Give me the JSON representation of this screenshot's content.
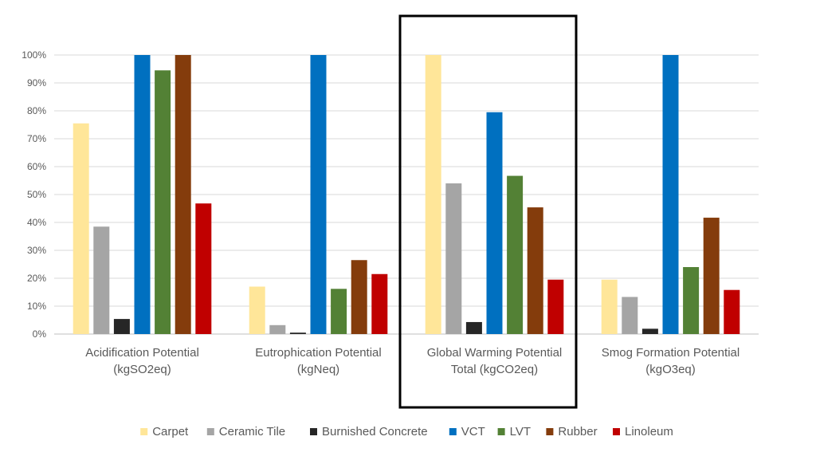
{
  "chart_data": {
    "type": "bar",
    "categories": [
      [
        "Acidification Potential",
        "(kgSO2eq)"
      ],
      [
        "Eutrophication Potential",
        "(kgNeq)"
      ],
      [
        "Global Warming Potential",
        "Total (kgCO2eq)"
      ],
      [
        "Smog Formation Potential",
        "(kgO3eq)"
      ]
    ],
    "y_ticks": [
      "0%",
      "10%",
      "20%",
      "30%",
      "40%",
      "50%",
      "60%",
      "70%",
      "80%",
      "90%",
      "100%"
    ],
    "ylim": [
      0,
      100
    ],
    "grid": true,
    "legend_position": "bottom",
    "highlighted_category": 2,
    "series": [
      {
        "name": "Carpet",
        "color": "#FFE699",
        "values": [
          75.5,
          17,
          100,
          19.5
        ]
      },
      {
        "name": "Ceramic Tile",
        "color": "#A5A5A5",
        "values": [
          38.5,
          3.2,
          54,
          13.3
        ]
      },
      {
        "name": "Burnished Concrete",
        "color": "#262626",
        "values": [
          5.4,
          0.5,
          4.3,
          1.9
        ]
      },
      {
        "name": "VCT",
        "color": "#0070C0",
        "values": [
          100,
          100,
          79.5,
          100
        ]
      },
      {
        "name": "LVT",
        "color": "#538135",
        "values": [
          94.5,
          16.2,
          56.7,
          24
        ]
      },
      {
        "name": "Rubber",
        "color": "#843C0C",
        "values": [
          100,
          26.5,
          45.4,
          41.7
        ]
      },
      {
        "name": "Linoleum",
        "color": "#C00000",
        "values": [
          46.8,
          21.5,
          19.5,
          15.8
        ]
      }
    ]
  }
}
